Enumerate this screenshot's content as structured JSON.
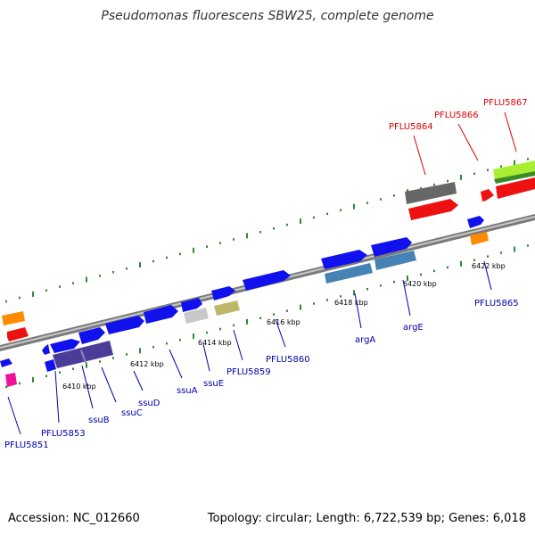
{
  "title": "Pseudomonas fluorescens SBW25, complete genome",
  "accession_text": "Accession: NC_012660",
  "summary_text": "Topology: circular; Length: 6,722,539 bp; Genes: 6,018",
  "colors": {
    "forward_gene": "#0000ee",
    "highlight_label": "#dd0000",
    "gene_label": "#0000aa",
    "backbone": "#888888",
    "dot_track": "#2e8b2e"
  },
  "ticks": [
    {
      "label": "6410 kbp"
    },
    {
      "label": "6412 kbp"
    },
    {
      "label": "6414 kbp"
    },
    {
      "label": "6416 kbp"
    },
    {
      "label": "6418 kbp"
    },
    {
      "label": "6420 kbp"
    },
    {
      "label": "6422 kbp"
    }
  ],
  "gene_labels": [
    {
      "text": "PFLU5851",
      "color": "blue"
    },
    {
      "text": "PFLU5853",
      "color": "blue"
    },
    {
      "text": "ssuB",
      "color": "blue"
    },
    {
      "text": "ssuC",
      "color": "blue"
    },
    {
      "text": "ssuD",
      "color": "blue"
    },
    {
      "text": "ssuA",
      "color": "blue"
    },
    {
      "text": "ssuE",
      "color": "blue"
    },
    {
      "text": "PFLU5859",
      "color": "blue"
    },
    {
      "text": "PFLU5860",
      "color": "blue"
    },
    {
      "text": "argA",
      "color": "blue"
    },
    {
      "text": "argE",
      "color": "blue"
    },
    {
      "text": "PFLU5865",
      "color": "blue"
    },
    {
      "text": "PFLU5864",
      "color": "red"
    },
    {
      "text": "PFLU5866",
      "color": "red"
    },
    {
      "text": "PFLU5867",
      "color": "red"
    }
  ]
}
